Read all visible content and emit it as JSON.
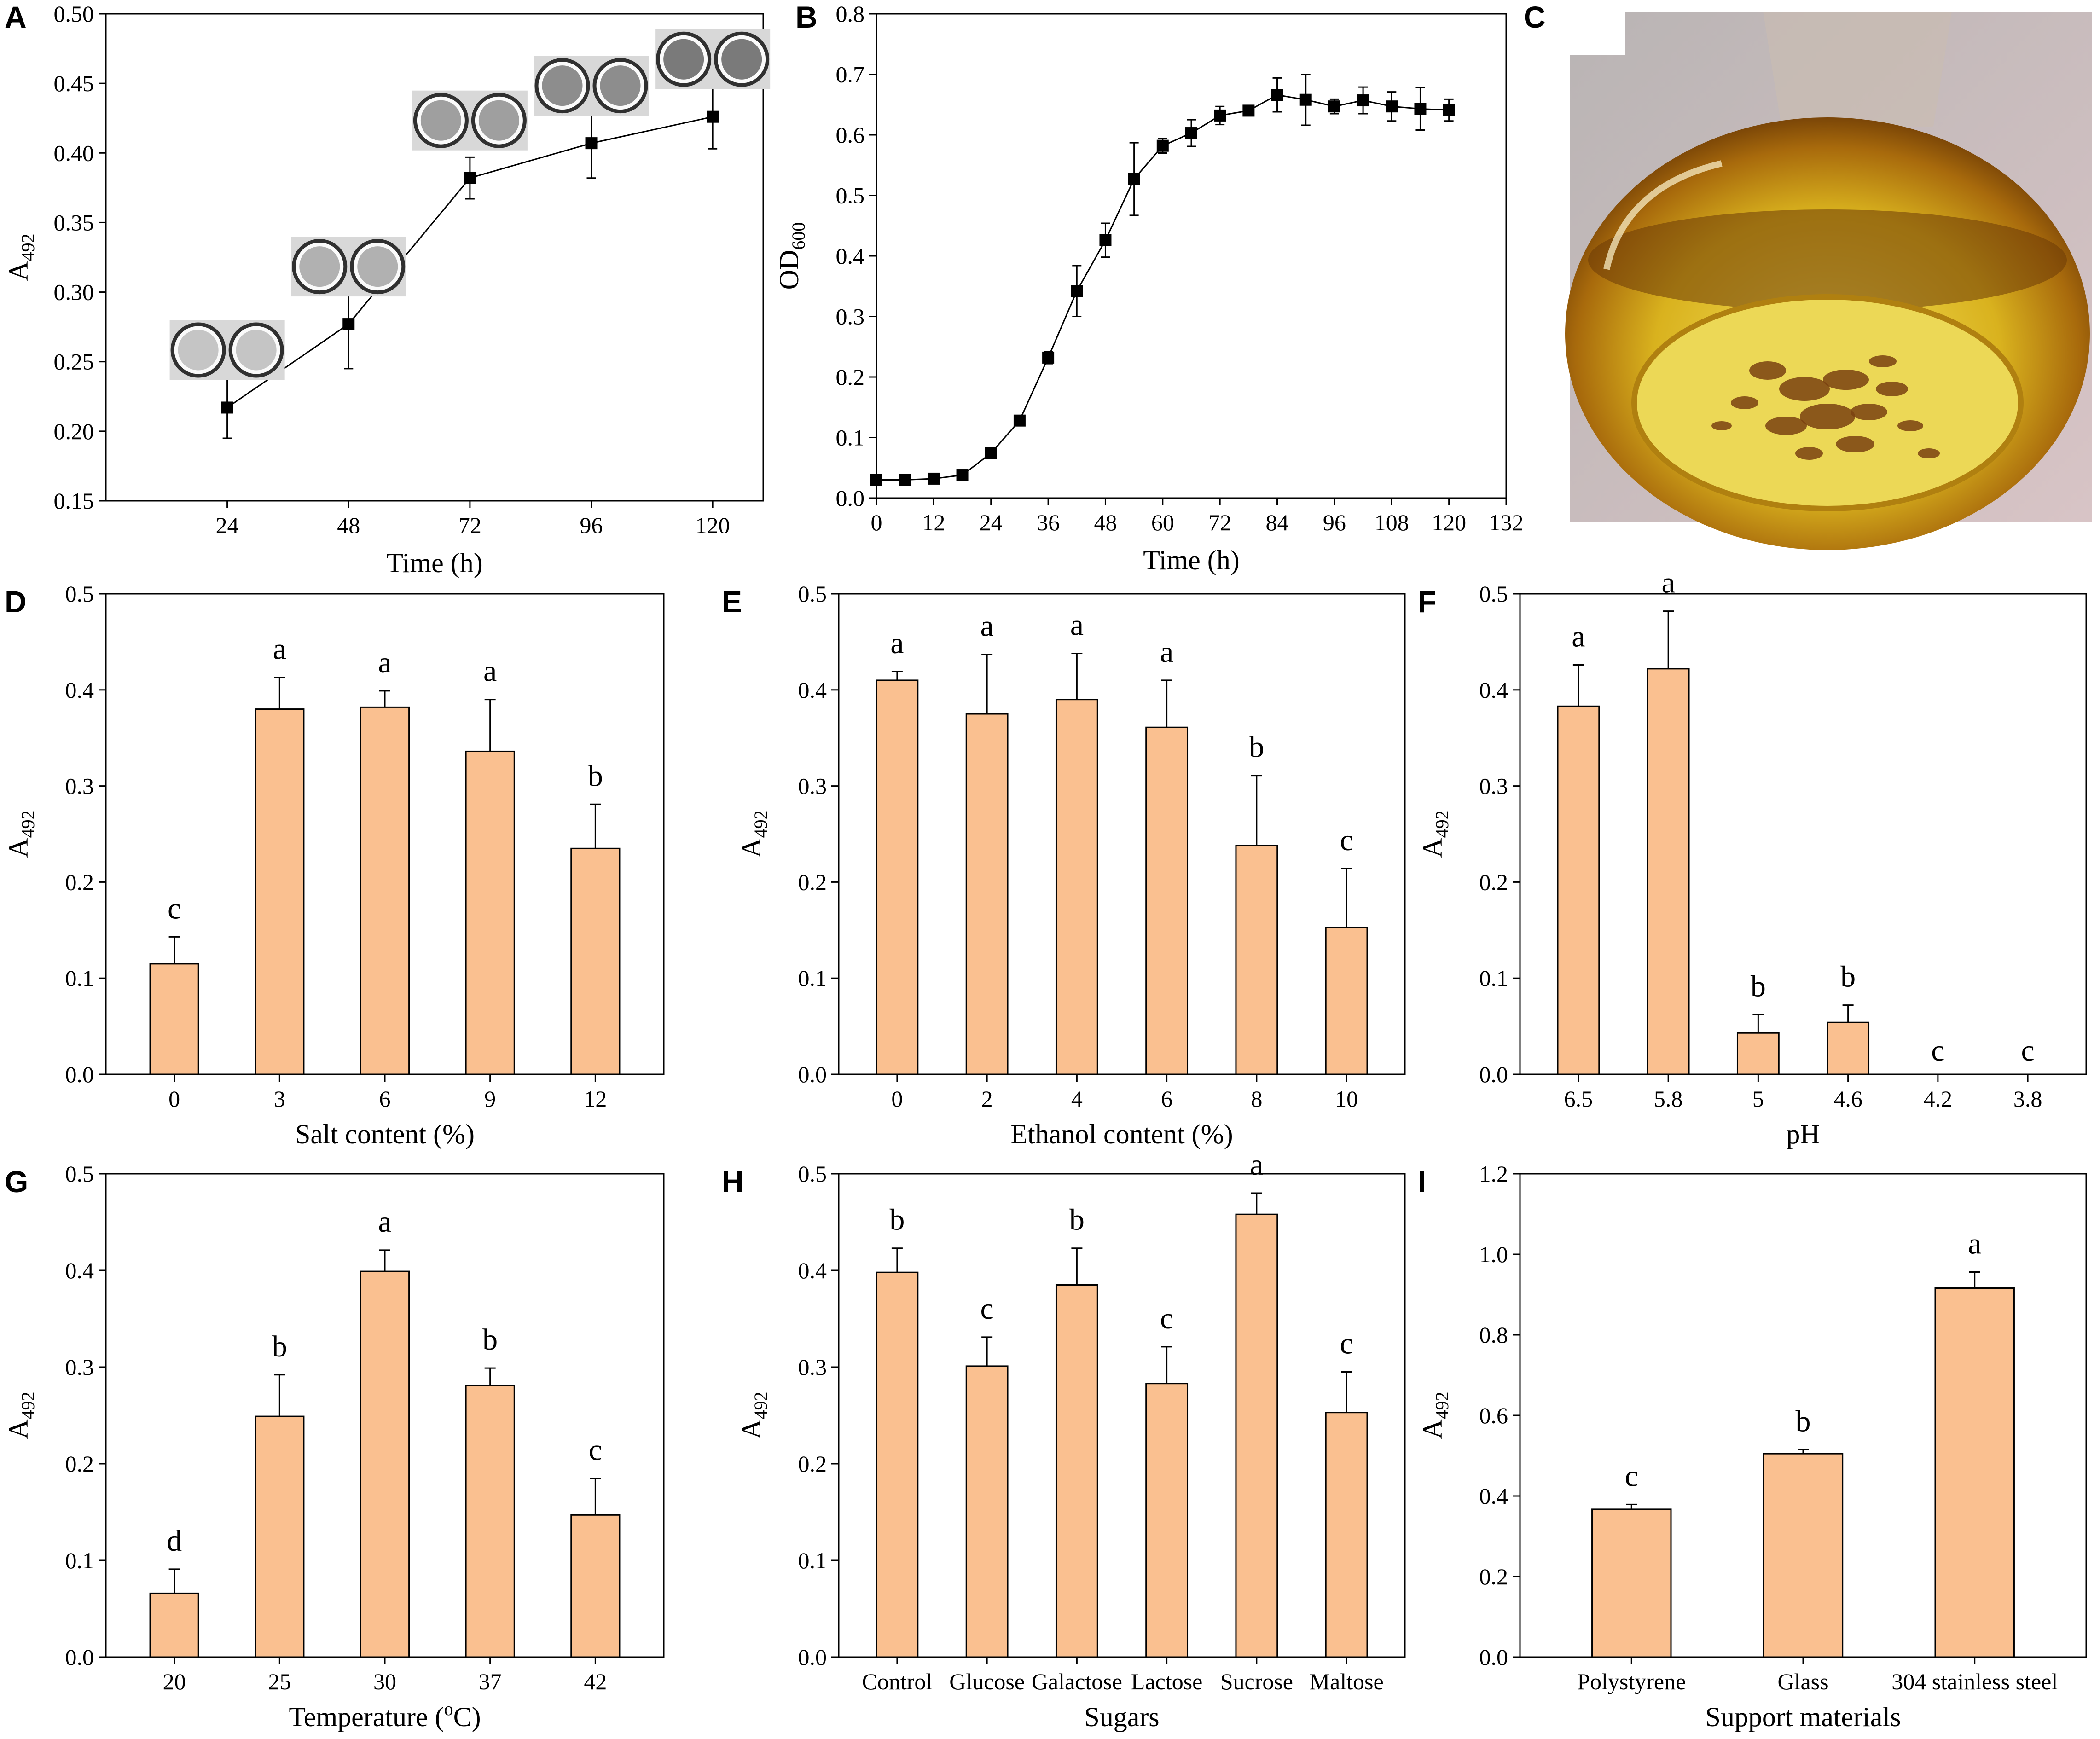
{
  "colors": {
    "bar_fill": "#FAC090",
    "stroke": "#000000",
    "marker": "#000000",
    "background": "#ffffff"
  },
  "photo_C": {
    "panel": "C",
    "icon": "flask-photo-icon",
    "description_colors": [
      "#6b3a08",
      "#d4a020",
      "#e8d060"
    ]
  },
  "chart_data": [
    {
      "panel": "A",
      "type": "line",
      "x": [
        24,
        48,
        72,
        96,
        120
      ],
      "y": [
        0.217,
        0.277,
        0.382,
        0.407,
        0.426
      ],
      "err": [
        0.022,
        0.032,
        0.015,
        0.025,
        0.023
      ],
      "xticks": [
        "24",
        "48",
        "72",
        "96",
        "120"
      ],
      "yticks": [
        "0.15",
        "0.20",
        "0.25",
        "0.30",
        "0.35",
        "0.40",
        "0.45",
        "0.50"
      ],
      "xlim": [
        0,
        130
      ],
      "ylim": [
        0.15,
        0.5
      ],
      "xlabel": "Time (h)",
      "ylabel_main": "A",
      "ylabel_sub": "492",
      "inset_images": "crystal-violet wells at each time point"
    },
    {
      "panel": "B",
      "type": "line",
      "x": [
        0,
        6,
        12,
        18,
        24,
        30,
        36,
        42,
        48,
        54,
        60,
        66,
        72,
        78,
        84,
        90,
        96,
        102,
        108,
        114,
        120
      ],
      "y": [
        0.03,
        0.03,
        0.032,
        0.038,
        0.074,
        0.128,
        0.232,
        0.342,
        0.426,
        0.527,
        0.582,
        0.603,
        0.632,
        0.64,
        0.666,
        0.658,
        0.647,
        0.657,
        0.647,
        0.643,
        0.641
      ],
      "err": [
        0.003,
        0.003,
        0.003,
        0.003,
        0.004,
        0.005,
        0.01,
        0.042,
        0.028,
        0.06,
        0.012,
        0.022,
        0.015,
        0.007,
        0.028,
        0.042,
        0.012,
        0.022,
        0.024,
        0.035,
        0.018
      ],
      "xticks": [
        "0",
        "12",
        "24",
        "36",
        "48",
        "60",
        "72",
        "84",
        "96",
        "108",
        "120",
        "132"
      ],
      "yticks": [
        "0.0",
        "0.1",
        "0.2",
        "0.3",
        "0.4",
        "0.5",
        "0.6",
        "0.7",
        "0.8"
      ],
      "xlim": [
        0,
        132
      ],
      "ylim": [
        0,
        0.8
      ],
      "xlabel": "Time (h)",
      "ylabel_main": "OD",
      "ylabel_sub": "600"
    },
    {
      "panel": "D",
      "type": "bar",
      "categories": [
        "0",
        "3",
        "6",
        "9",
        "12"
      ],
      "values": [
        0.115,
        0.38,
        0.382,
        0.336,
        0.235
      ],
      "err": [
        0.028,
        0.033,
        0.017,
        0.054,
        0.046
      ],
      "sig": [
        "c",
        "a",
        "a",
        "a",
        "b"
      ],
      "yticks": [
        "0.0",
        "0.1",
        "0.2",
        "0.3",
        "0.4",
        "0.5"
      ],
      "ylim": [
        0,
        0.5
      ],
      "xlabel": "Salt content (%)",
      "ylabel_main": "A",
      "ylabel_sub": "492"
    },
    {
      "panel": "E",
      "type": "bar",
      "categories": [
        "0",
        "2",
        "4",
        "6",
        "8",
        "10"
      ],
      "values": [
        0.41,
        0.375,
        0.39,
        0.361,
        0.238,
        0.153
      ],
      "err": [
        0.009,
        0.062,
        0.048,
        0.049,
        0.073,
        0.061
      ],
      "sig": [
        "a",
        "a",
        "a",
        "a",
        "b",
        "c"
      ],
      "yticks": [
        "0.0",
        "0.1",
        "0.2",
        "0.3",
        "0.4",
        "0.5"
      ],
      "ylim": [
        0,
        0.5
      ],
      "xlabel": "Ethanol content (%)",
      "ylabel_main": "A",
      "ylabel_sub": "492"
    },
    {
      "panel": "F",
      "type": "bar",
      "categories": [
        "6.5",
        "5.8",
        "5",
        "4.6",
        "4.2",
        "3.8"
      ],
      "values": [
        0.383,
        0.422,
        0.043,
        0.054,
        0,
        0
      ],
      "err": [
        0.043,
        0.06,
        0.019,
        0.018,
        0,
        0
      ],
      "sig": [
        "a",
        "a",
        "b",
        "b",
        "c",
        "c"
      ],
      "yticks": [
        "0.0",
        "0.1",
        "0.2",
        "0.3",
        "0.4",
        "0.5"
      ],
      "ylim": [
        0,
        0.5
      ],
      "xlabel": "pH",
      "ylabel_main": "A",
      "ylabel_sub": "492"
    },
    {
      "panel": "G",
      "type": "bar",
      "categories": [
        "20",
        "25",
        "30",
        "37",
        "42"
      ],
      "values": [
        0.066,
        0.249,
        0.399,
        0.281,
        0.147
      ],
      "err": [
        0.025,
        0.043,
        0.022,
        0.018,
        0.038
      ],
      "sig": [
        "d",
        "b",
        "a",
        "b",
        "c"
      ],
      "yticks": [
        "0.0",
        "0.1",
        "0.2",
        "0.3",
        "0.4",
        "0.5"
      ],
      "ylim": [
        0,
        0.5
      ],
      "xlabel_main": "Temperature (",
      "xlabel_sup": "o",
      "xlabel_end": "C)",
      "ylabel_main": "A",
      "ylabel_sub": "492"
    },
    {
      "panel": "H",
      "type": "bar",
      "categories": [
        "Control",
        "Glucose",
        "Galactose",
        "Lactose",
        "Sucrose",
        "Maltose"
      ],
      "values": [
        0.398,
        0.301,
        0.385,
        0.283,
        0.458,
        0.253
      ],
      "err": [
        0.025,
        0.03,
        0.038,
        0.038,
        0.022,
        0.042
      ],
      "sig": [
        "b",
        "c",
        "b",
        "c",
        "a",
        "c"
      ],
      "yticks": [
        "0.0",
        "0.1",
        "0.2",
        "0.3",
        "0.4",
        "0.5"
      ],
      "ylim": [
        0,
        0.5
      ],
      "xlabel": "Sugars",
      "ylabel_main": "A",
      "ylabel_sub": "492"
    },
    {
      "panel": "I",
      "type": "bar",
      "categories": [
        "Polystyrene",
        "Glass",
        "304 stainless steel"
      ],
      "values": [
        0.367,
        0.505,
        0.916
      ],
      "err": [
        0.012,
        0.01,
        0.04
      ],
      "sig": [
        "c",
        "b",
        "a"
      ],
      "yticks": [
        "0.0",
        "0.2",
        "0.4",
        "0.6",
        "0.8",
        "1.0",
        "1.2"
      ],
      "ylim": [
        0,
        1.2
      ],
      "xlabel": "Support materials",
      "ylabel_main": "A",
      "ylabel_sub": "492"
    }
  ]
}
